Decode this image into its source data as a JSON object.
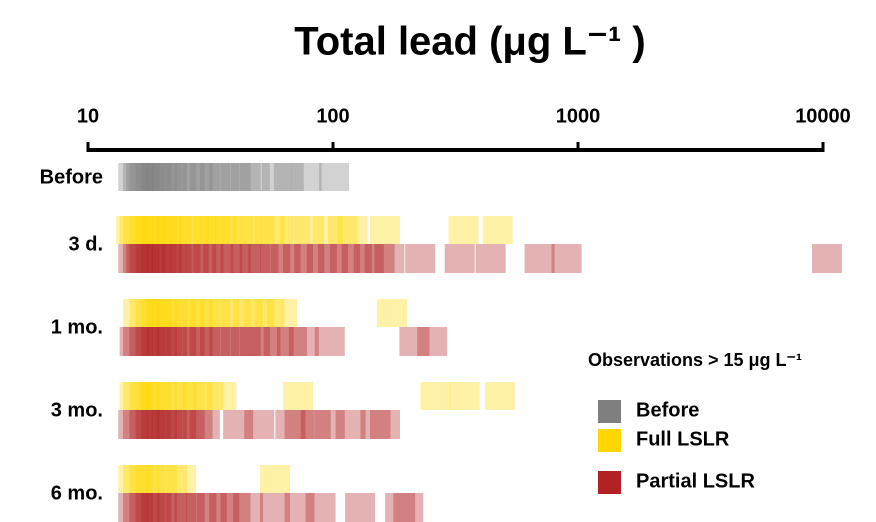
{
  "chart_data": {
    "type": "strip",
    "title": "Total lead (μg L⁻¹ )",
    "log_x": true,
    "xlim": [
      10,
      10000
    ],
    "xticks": [
      10,
      100,
      1000,
      10000
    ],
    "categories": [
      "Before",
      "3 d.",
      "1 mo.",
      "3 mo.",
      "6 mo."
    ],
    "legend_title": "Observations > 15 μg L⁻¹",
    "legend_position": "right",
    "series": [
      {
        "name": "Before",
        "color": "#7f7f7f",
        "values": [
          [
            15.3,
            16,
            16.5,
            17,
            18,
            19,
            20,
            21,
            22,
            24,
            26,
            28,
            30,
            33,
            36,
            40,
            44,
            48,
            59,
            66,
            78,
            101
          ],
          [],
          [],
          [],
          []
        ]
      },
      {
        "name": "Full LSLR",
        "color": "#ffd700",
        "values": [
          [],
          [
            15,
            15.5,
            16,
            17,
            18,
            19,
            20,
            21,
            22,
            23,
            25,
            27,
            29,
            31,
            33,
            35,
            38,
            41,
            45,
            50,
            55,
            60,
            70,
            80,
            95,
            110,
            120,
            163,
            341,
            470
          ],
          [
            16,
            17,
            18,
            19,
            20,
            21,
            22,
            24,
            26,
            28,
            30,
            33,
            36,
            40,
            45,
            50,
            55,
            62,
            174
          ],
          [
            15.5,
            16,
            17,
            18,
            19,
            20,
            22,
            24,
            26,
            28,
            31,
            35,
            72,
            262,
            345,
            480
          ],
          [
            15.3,
            16,
            17,
            18,
            20,
            22,
            24,
            58
          ]
        ]
      },
      {
        "name": "Partial LSLR",
        "color": "#b22222",
        "values": [
          [],
          [
            15.3,
            16,
            16.5,
            17,
            18,
            19,
            20,
            21,
            22,
            23,
            25,
            27,
            29,
            31,
            34,
            37,
            40,
            44,
            48,
            52,
            58,
            64,
            72,
            80,
            90,
            100,
            112,
            125,
            140,
            155,
            170,
            227,
            329,
            440,
            697,
            898,
            10376
          ],
          [
            15.5,
            16,
            17,
            18,
            19,
            20,
            21,
            22,
            24,
            26,
            28,
            30,
            33,
            36,
            40,
            44,
            48,
            53,
            60,
            68,
            76,
            97,
            215,
            254
          ],
          [
            15.3,
            16,
            17,
            18,
            19,
            20,
            21,
            22,
            24,
            26,
            28,
            30,
            41,
            50,
            67,
            73,
            85,
            97,
            118,
            149,
            163
          ],
          [
            15.3,
            16,
            17,
            18,
            19,
            20,
            22,
            24,
            26,
            29,
            32,
            36,
            40,
            45,
            58,
            73,
            89,
            129,
            188,
            203
          ]
        ]
      }
    ]
  }
}
